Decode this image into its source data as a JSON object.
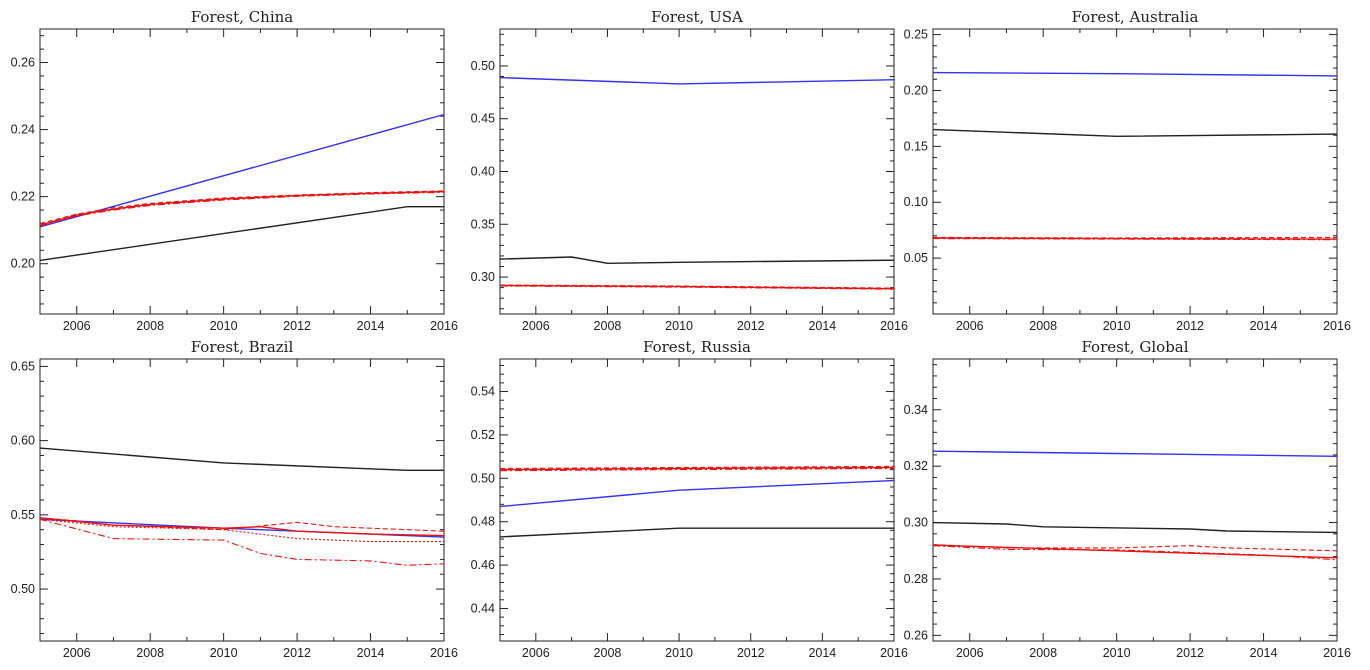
{
  "colors": {
    "black_series": "#222222",
    "blue_series": "#3333ee",
    "red_series": "#ee1111",
    "frame": "#222222"
  },
  "chart_data": [
    {
      "type": "line",
      "title": "Forest, China",
      "xlabel": "",
      "ylabel": "",
      "xlim": [
        2005,
        2016
      ],
      "ylim": [
        0.185,
        0.27
      ],
      "xticks": [
        2006,
        2008,
        2010,
        2012,
        2014,
        2016
      ],
      "yticks": [
        0.2,
        0.22,
        0.24,
        0.26
      ],
      "ytick_labels": [
        "0.20",
        "0.22",
        "0.24",
        "0.26"
      ],
      "series": [
        {
          "color": "blue",
          "style": "solid",
          "x": [
            2005,
            2016
          ],
          "y": [
            0.211,
            0.2445
          ]
        },
        {
          "color": "black",
          "style": "solid",
          "x": [
            2005,
            2015,
            2016
          ],
          "y": [
            0.201,
            0.217,
            0.217
          ]
        },
        {
          "color": "red",
          "style": "solid",
          "x": [
            2005,
            2006,
            2007,
            2008,
            2010,
            2012,
            2014,
            2016
          ],
          "y": [
            0.2115,
            0.2145,
            0.2163,
            0.2177,
            0.2193,
            0.2203,
            0.221,
            0.2215
          ]
        },
        {
          "color": "red",
          "style": "dashed",
          "x": [
            2005,
            2006,
            2007,
            2008,
            2010,
            2012,
            2014,
            2016
          ],
          "y": [
            0.212,
            0.2148,
            0.2167,
            0.218,
            0.2196,
            0.2205,
            0.2212,
            0.2217
          ]
        },
        {
          "color": "red",
          "style": "dashdot",
          "x": [
            2005,
            2006,
            2007,
            2008,
            2010,
            2012,
            2014,
            2016
          ],
          "y": [
            0.2113,
            0.2143,
            0.216,
            0.2174,
            0.219,
            0.2201,
            0.2208,
            0.2213
          ]
        }
      ]
    },
    {
      "type": "line",
      "title": "Forest, USA",
      "xlabel": "",
      "ylabel": "",
      "xlim": [
        2005,
        2016
      ],
      "ylim": [
        0.265,
        0.535
      ],
      "xticks": [
        2006,
        2008,
        2010,
        2012,
        2014,
        2016
      ],
      "yticks": [
        0.3,
        0.35,
        0.4,
        0.45,
        0.5
      ],
      "ytick_labels": [
        "0.30",
        "0.35",
        "0.40",
        "0.45",
        "0.50"
      ],
      "series": [
        {
          "color": "blue",
          "style": "solid",
          "x": [
            2005,
            2010,
            2016
          ],
          "y": [
            0.489,
            0.483,
            0.487
          ]
        },
        {
          "color": "black",
          "style": "solid",
          "x": [
            2005,
            2007,
            2008,
            2010,
            2016
          ],
          "y": [
            0.317,
            0.319,
            0.313,
            0.314,
            0.316
          ]
        },
        {
          "color": "red",
          "style": "solid",
          "x": [
            2005,
            2010,
            2016
          ],
          "y": [
            0.292,
            0.291,
            0.289
          ]
        },
        {
          "color": "red",
          "style": "dashed",
          "x": [
            2005,
            2010,
            2016
          ],
          "y": [
            0.2925,
            0.2915,
            0.2895
          ]
        },
        {
          "color": "red",
          "style": "dashdot",
          "x": [
            2005,
            2010,
            2016
          ],
          "y": [
            0.2915,
            0.2905,
            0.2885
          ]
        }
      ]
    },
    {
      "type": "line",
      "title": "Forest, Australia",
      "xlabel": "",
      "ylabel": "",
      "xlim": [
        2005,
        2016
      ],
      "ylim": [
        0.0,
        0.255
      ],
      "xticks": [
        2006,
        2008,
        2010,
        2012,
        2014,
        2016
      ],
      "yticks": [
        0.05,
        0.1,
        0.15,
        0.2,
        0.25
      ],
      "ytick_labels": [
        "0.05",
        "0.10",
        "0.15",
        "0.20",
        "0.25"
      ],
      "series": [
        {
          "color": "blue",
          "style": "solid",
          "x": [
            2005,
            2010,
            2016
          ],
          "y": [
            0.216,
            0.215,
            0.213
          ]
        },
        {
          "color": "black",
          "style": "solid",
          "x": [
            2005,
            2010,
            2016
          ],
          "y": [
            0.165,
            0.159,
            0.161
          ]
        },
        {
          "color": "red",
          "style": "solid",
          "x": [
            2005,
            2010,
            2016
          ],
          "y": [
            0.068,
            0.0675,
            0.067
          ]
        },
        {
          "color": "red",
          "style": "dashed",
          "x": [
            2005,
            2010,
            2016
          ],
          "y": [
            0.0685,
            0.068,
            0.0685
          ]
        },
        {
          "color": "red",
          "style": "dashdot",
          "x": [
            2005,
            2010,
            2016
          ],
          "y": [
            0.0675,
            0.067,
            0.0665
          ]
        }
      ]
    },
    {
      "type": "line",
      "title": "Forest, Brazil",
      "xlabel": "",
      "ylabel": "",
      "xlim": [
        2005,
        2016
      ],
      "ylim": [
        0.465,
        0.655
      ],
      "xticks": [
        2006,
        2008,
        2010,
        2012,
        2014,
        2016
      ],
      "yticks": [
        0.5,
        0.55,
        0.6,
        0.65
      ],
      "ytick_labels": [
        "0.50",
        "0.55",
        "0.60",
        "0.65"
      ],
      "series": [
        {
          "color": "black",
          "style": "solid",
          "x": [
            2005,
            2010,
            2015,
            2016
          ],
          "y": [
            0.595,
            0.585,
            0.58,
            0.58
          ]
        },
        {
          "color": "blue",
          "style": "solid",
          "x": [
            2005,
            2010,
            2016
          ],
          "y": [
            0.547,
            0.541,
            0.535
          ]
        },
        {
          "color": "red",
          "style": "solid",
          "x": [
            2005,
            2007,
            2010,
            2011,
            2012,
            2014,
            2016
          ],
          "y": [
            0.548,
            0.543,
            0.541,
            0.542,
            0.539,
            0.537,
            0.536
          ]
        },
        {
          "color": "red",
          "style": "dashed",
          "x": [
            2005,
            2006,
            2007,
            2010,
            2012,
            2013,
            2016
          ],
          "y": [
            0.548,
            0.546,
            0.543,
            0.54,
            0.545,
            0.542,
            0.539
          ]
        },
        {
          "color": "red",
          "style": "dotted",
          "x": [
            2005,
            2007,
            2010,
            2012,
            2014,
            2016
          ],
          "y": [
            0.547,
            0.542,
            0.54,
            0.534,
            0.532,
            0.532
          ]
        },
        {
          "color": "red",
          "style": "dashdot",
          "x": [
            2005,
            2007,
            2010,
            2011,
            2012,
            2014,
            2015,
            2016
          ],
          "y": [
            0.547,
            0.534,
            0.533,
            0.524,
            0.52,
            0.519,
            0.516,
            0.517
          ]
        }
      ]
    },
    {
      "type": "line",
      "title": "Forest, Russia",
      "xlabel": "",
      "ylabel": "",
      "xlim": [
        2005,
        2016
      ],
      "ylim": [
        0.425,
        0.555
      ],
      "xticks": [
        2006,
        2008,
        2010,
        2012,
        2014,
        2016
      ],
      "yticks": [
        0.44,
        0.46,
        0.48,
        0.5,
        0.52,
        0.54
      ],
      "ytick_labels": [
        "0.44",
        "0.46",
        "0.48",
        "0.50",
        "0.52",
        "0.54"
      ],
      "series": [
        {
          "color": "red",
          "style": "solid",
          "x": [
            2005,
            2010,
            2016
          ],
          "y": [
            0.504,
            0.5045,
            0.505
          ]
        },
        {
          "color": "red",
          "style": "dashed",
          "x": [
            2005,
            2010,
            2016
          ],
          "y": [
            0.5045,
            0.505,
            0.5055
          ]
        },
        {
          "color": "red",
          "style": "dashdot",
          "x": [
            2005,
            2010,
            2016
          ],
          "y": [
            0.5035,
            0.504,
            0.5045
          ]
        },
        {
          "color": "blue",
          "style": "solid",
          "x": [
            2005,
            2010,
            2016
          ],
          "y": [
            0.487,
            0.4945,
            0.499
          ]
        },
        {
          "color": "black",
          "style": "solid",
          "x": [
            2005,
            2010,
            2016
          ],
          "y": [
            0.473,
            0.477,
            0.477
          ]
        }
      ]
    },
    {
      "type": "line",
      "title": "Forest, Global",
      "xlabel": "",
      "ylabel": "",
      "xlim": [
        2005,
        2016
      ],
      "ylim": [
        0.258,
        0.358
      ],
      "xticks": [
        2006,
        2008,
        2010,
        2012,
        2014,
        2016
      ],
      "yticks": [
        0.26,
        0.28,
        0.3,
        0.32,
        0.34
      ],
      "ytick_labels": [
        "0.26",
        "0.28",
        "0.30",
        "0.32",
        "0.34"
      ],
      "series": [
        {
          "color": "blue",
          "style": "solid",
          "x": [
            2005,
            2010,
            2016
          ],
          "y": [
            0.3253,
            0.3245,
            0.3235
          ]
        },
        {
          "color": "black",
          "style": "solid",
          "x": [
            2005,
            2007,
            2008,
            2012,
            2013,
            2016
          ],
          "y": [
            0.3,
            0.2995,
            0.2985,
            0.2977,
            0.297,
            0.2965
          ]
        },
        {
          "color": "red",
          "style": "solid",
          "x": [
            2005,
            2010,
            2016
          ],
          "y": [
            0.292,
            0.29,
            0.2875
          ]
        },
        {
          "color": "red",
          "style": "dashed",
          "x": [
            2005,
            2007,
            2010,
            2012,
            2013,
            2016
          ],
          "y": [
            0.2922,
            0.291,
            0.291,
            0.2918,
            0.291,
            0.29
          ]
        },
        {
          "color": "red",
          "style": "dashdot",
          "x": [
            2005,
            2007,
            2010,
            2014,
            2016
          ],
          "y": [
            0.2918,
            0.2905,
            0.2903,
            0.2885,
            0.2868
          ]
        }
      ]
    }
  ]
}
